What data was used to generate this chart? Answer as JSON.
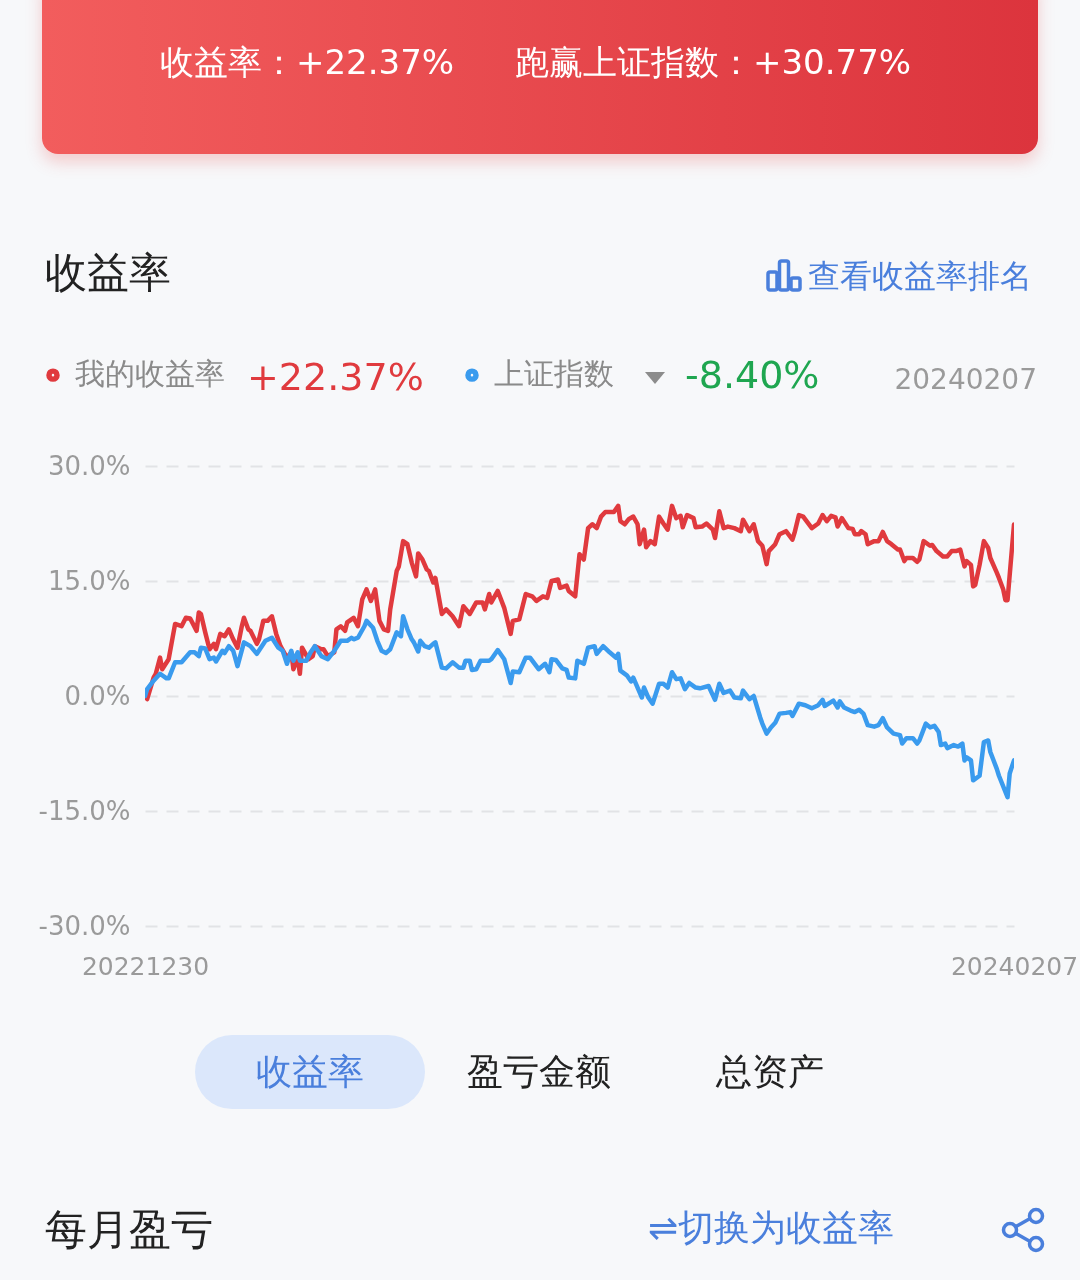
{
  "chart_data": {
    "type": "line",
    "title": "收益率",
    "series": [
      {
        "name": "我的收益率",
        "color": "#e03a3e",
        "x": [
          "2022-12-30",
          "2022-12-31",
          "2023-01-03",
          "2023-01-04",
          "2023-01-06",
          "2023-01-07",
          "2023-01-10",
          "2023-01-13",
          "2023-01-16",
          "2023-01-18",
          "2023-01-20",
          "2023-01-23",
          "2023-01-24",
          "2023-01-25",
          "2023-01-27",
          "2023-01-29",
          "2023-01-31",
          "2023-02-01",
          "2023-02-03",
          "2023-02-05",
          "2023-02-07",
          "2023-02-09",
          "2023-02-11",
          "2023-02-13",
          "2023-02-14",
          "2023-02-16",
          "2023-02-17",
          "2023-02-20",
          "2023-02-21",
          "2023-02-23",
          "2023-02-25",
          "2023-02-27",
          "2023-03-01",
          "2023-03-03",
          "2023-03-06",
          "2023-03-08",
          "2023-03-09",
          "2023-03-11",
          "2023-03-12",
          "2023-03-13",
          "2023-03-16",
          "2023-03-18",
          "2023-03-19",
          "2023-03-22",
          "2023-03-23",
          "2023-03-25",
          "2023-03-28",
          "2023-03-29",
          "2023-03-31",
          "2023-04-02",
          "2023-04-03",
          "2023-04-06",
          "2023-04-08",
          "2023-04-10",
          "2023-04-12",
          "2023-04-14",
          "2023-04-16",
          "2023-04-18",
          "2023-04-20",
          "2023-04-22",
          "2023-04-23",
          "2023-04-26",
          "2023-04-27",
          "2023-04-29",
          "2023-05-01",
          "2023-05-03",
          "2023-05-05",
          "2023-05-06",
          "2023-05-08",
          "2023-05-10",
          "2023-05-11",
          "2023-05-13",
          "2023-05-14",
          "2023-05-17",
          "2023-05-19",
          "2023-05-22",
          "2023-05-25",
          "2023-05-27",
          "2023-05-30",
          "2023-06-02",
          "2023-06-05",
          "2023-06-06",
          "2023-06-08",
          "2023-06-09",
          "2023-06-12",
          "2023-06-15",
          "2023-06-18",
          "2023-06-19",
          "2023-06-22",
          "2023-06-25",
          "2023-06-28",
          "2023-06-30",
          "2023-07-03",
          "2023-07-05",
          "2023-07-07",
          "2023-07-10",
          "2023-07-11",
          "2023-07-14",
          "2023-07-15",
          "2023-07-18",
          "2023-07-20",
          "2023-07-22",
          "2023-07-24",
          "2023-07-26",
          "2023-07-28",
          "2023-07-30",
          "2023-08-01",
          "2023-08-05",
          "2023-08-07",
          "2023-08-08",
          "2023-08-10",
          "2023-08-12",
          "2023-08-14",
          "2023-08-16",
          "2023-08-17",
          "2023-08-19",
          "2023-08-20",
          "2023-08-22",
          "2023-08-24",
          "2023-08-26",
          "2023-08-28",
          "2023-08-30",
          "2023-09-01",
          "2023-09-03",
          "2023-09-05",
          "2023-09-06",
          "2023-09-08",
          "2023-09-11",
          "2023-09-12",
          "2023-09-15",
          "2023-09-17",
          "2023-09-20",
          "2023-09-21",
          "2023-09-23",
          "2023-09-25",
          "2023-09-27",
          "2023-09-30",
          "2023-10-03",
          "2023-10-04",
          "2023-10-07",
          "2023-10-09",
          "2023-10-11",
          "2023-10-13",
          "2023-10-15",
          "2023-10-16",
          "2023-10-19",
          "2023-10-21",
          "2023-10-24",
          "2023-10-27",
          "2023-10-28",
          "2023-10-30",
          "2023-11-01",
          "2023-11-05",
          "2023-11-08",
          "2023-11-10",
          "2023-11-12",
          "2023-11-14",
          "2023-11-16",
          "2023-11-17",
          "2023-11-19",
          "2023-11-22",
          "2023-11-24",
          "2023-11-25",
          "2023-11-27",
          "2023-11-28",
          "2023-11-30",
          "2023-12-01",
          "2023-12-04",
          "2023-12-06",
          "2023-12-08",
          "2023-12-10",
          "2023-12-12",
          "2023-12-15",
          "2023-12-16",
          "2023-12-18",
          "2023-12-19",
          "2023-12-22",
          "2023-12-24",
          "2023-12-25",
          "2023-12-27",
          "2023-12-30",
          "2023-12-31",
          "2024-01-02",
          "2024-01-05",
          "2024-01-07",
          "2024-01-09",
          "2024-01-11",
          "2024-01-13",
          "2024-01-15",
          "2024-01-16",
          "2024-01-18",
          "2024-01-19",
          "2024-01-20",
          "2024-01-22",
          "2024-01-24",
          "2024-01-26",
          "2024-01-27",
          "2024-01-30",
          "2024-01-31",
          "2024-02-02",
          "2024-02-03",
          "2024-02-04",
          "2024-02-07"
        ],
        "values": [
          0,
          -0.4,
          2.4,
          2.9,
          5.0,
          3.5,
          4.8,
          9.4,
          9.1,
          10.2,
          10.1,
          8.5,
          10.9,
          10.7,
          8.3,
          6.1,
          6.8,
          6.1,
          8.1,
          7.8,
          8.7,
          7.4,
          6.3,
          9.1,
          10.2,
          8.7,
          8.5,
          6.8,
          7.4,
          9.8,
          9.8,
          10.4,
          8.1,
          6.5,
          5.0,
          5.7,
          3.5,
          5.0,
          2.9,
          6.3,
          4.8,
          5.2,
          6.5,
          6.1,
          6.1,
          5.2,
          5.7,
          8.7,
          9.1,
          8.5,
          9.6,
          10.2,
          9.1,
          12.6,
          13.9,
          12.4,
          13.9,
          9.8,
          8.7,
          8.5,
          11.3,
          16.3,
          16.9,
          20.2,
          19.8,
          17.4,
          15.6,
          18.6,
          17.8,
          16.5,
          16.3,
          14.8,
          15.4,
          10.7,
          11.3,
          10.4,
          9.1,
          11.7,
          10.7,
          12.2,
          12.2,
          11.3,
          13.3,
          12.2,
          13.7,
          11.5,
          8.1,
          9.8,
          10.0,
          13.3,
          13.0,
          12.4,
          13.0,
          12.8,
          15.0,
          15.2,
          14.1,
          14.4,
          13.7,
          13.0,
          18.5,
          17.8,
          21.9,
          22.4,
          21.9,
          23.4,
          24.0,
          24.0,
          24.8,
          22.8,
          22.4,
          23.1,
          23.4,
          22.4,
          19.8,
          21.7,
          19.4,
          20.2,
          19.8,
          23.4,
          22.5,
          21.7,
          24.8,
          23.2,
          23.5,
          22.0,
          23.6,
          23.2,
          22.0,
          22.1,
          22.5,
          21.7,
          20.6,
          24.1,
          21.9,
          22.1,
          21.9,
          21.5,
          23.0,
          21.5,
          22.4,
          20.2,
          19.6,
          17.2,
          18.9,
          19.8,
          21.1,
          21.5,
          20.4,
          21.3,
          23.6,
          23.4,
          21.9,
          22.5,
          23.6,
          22.8,
          23.5,
          23.3,
          22.1,
          23.2,
          21.9,
          21.8,
          21.1,
          21.1,
          21.5,
          21.1,
          19.8,
          20.2,
          20.2,
          21.4,
          20.2,
          19.8,
          19.1,
          19.1,
          17.6,
          18.0,
          18.0,
          17.5,
          17.8,
          20.2,
          19.6,
          19.7,
          18.9,
          18.2,
          18.2,
          18.9,
          18.9,
          19.1,
          16.9,
          17.6,
          17.1,
          14.3,
          14.5,
          17.1,
          20.2,
          19.3,
          18.0,
          16.1,
          15.4,
          13.9,
          12.5,
          12.5,
          22.37
        ]
      },
      {
        "name": "上证指数",
        "color": "#3a9bee",
        "x": [
          "2022-12-30",
          "2022-12-31",
          "2023-01-03",
          "2023-01-06",
          "2023-01-09",
          "2023-01-10",
          "2023-01-13",
          "2023-01-16",
          "2023-01-20",
          "2023-01-22",
          "2023-01-24",
          "2023-01-25",
          "2023-01-27",
          "2023-01-29",
          "2023-01-31",
          "2023-02-01",
          "2023-02-04",
          "2023-02-05",
          "2023-02-07",
          "2023-02-09",
          "2023-02-11",
          "2023-02-14",
          "2023-02-17",
          "2023-02-20",
          "2023-02-24",
          "2023-02-27",
          "2023-03-02",
          "2023-03-04",
          "2023-03-06",
          "2023-03-08",
          "2023-03-09",
          "2023-03-11",
          "2023-03-12",
          "2023-03-15",
          "2023-03-17",
          "2023-03-19",
          "2023-03-22",
          "2023-03-25",
          "2023-03-28",
          "2023-03-31",
          "2023-04-03",
          "2023-04-05",
          "2023-04-06",
          "2023-04-08",
          "2023-04-11",
          "2023-04-12",
          "2023-04-15",
          "2023-04-17",
          "2023-04-19",
          "2023-04-21",
          "2023-04-23",
          "2023-04-26",
          "2023-04-28",
          "2023-04-29",
          "2023-05-01",
          "2023-05-03",
          "2023-05-04",
          "2023-05-06",
          "2023-05-07",
          "2023-05-09",
          "2023-05-11",
          "2023-05-13",
          "2023-05-14",
          "2023-05-17",
          "2023-05-19",
          "2023-05-22",
          "2023-05-25",
          "2023-05-27",
          "2023-05-28",
          "2023-05-30",
          "2023-05-31",
          "2023-06-02",
          "2023-06-04",
          "2023-06-08",
          "2023-06-09",
          "2023-06-12",
          "2023-06-15",
          "2023-06-18",
          "2023-06-19",
          "2023-06-22",
          "2023-06-25",
          "2023-06-27",
          "2023-07-01",
          "2023-07-04",
          "2023-07-06",
          "2023-07-07",
          "2023-07-09",
          "2023-07-12",
          "2023-07-14",
          "2023-07-15",
          "2023-07-18",
          "2023-07-19",
          "2023-07-22",
          "2023-07-24",
          "2023-07-27",
          "2023-07-28",
          "2023-07-31",
          "2023-08-03",
          "2023-08-06",
          "2023-08-07",
          "2023-08-08",
          "2023-08-11",
          "2023-08-13",
          "2023-08-14",
          "2023-08-18",
          "2023-08-19",
          "2023-08-21",
          "2023-08-23",
          "2023-08-26",
          "2023-08-28",
          "2023-08-30",
          "2023-09-01",
          "2023-09-03",
          "2023-09-05",
          "2023-09-07",
          "2023-09-09",
          "2023-09-12",
          "2023-09-14",
          "2023-09-18",
          "2023-09-21",
          "2023-09-23",
          "2023-09-25",
          "2023-09-28",
          "2023-09-30",
          "2023-10-03",
          "2023-10-04",
          "2023-10-07",
          "2023-10-09",
          "2023-10-12",
          "2023-10-13",
          "2023-10-15",
          "2023-10-17",
          "2023-10-19",
          "2023-10-21",
          "2023-10-24",
          "2023-10-26",
          "2023-10-27",
          "2023-10-30",
          "2023-11-02",
          "2023-11-05",
          "2023-11-08",
          "2023-11-10",
          "2023-11-11",
          "2023-11-15",
          "2023-11-17",
          "2023-11-18",
          "2023-11-20",
          "2023-11-23",
          "2023-11-25",
          "2023-11-27",
          "2023-11-29",
          "2023-12-01",
          "2023-12-04",
          "2023-12-06",
          "2023-12-08",
          "2023-12-10",
          "2023-12-13",
          "2023-12-16",
          "2023-12-17",
          "2023-12-19",
          "2023-12-22",
          "2023-12-24",
          "2023-12-25",
          "2023-12-28",
          "2023-12-30",
          "2024-01-01",
          "2024-01-03",
          "2024-01-04",
          "2024-01-06",
          "2024-01-07",
          "2024-01-10",
          "2024-01-12",
          "2024-01-14",
          "2024-01-15",
          "2024-01-16",
          "2024-01-18",
          "2024-01-19",
          "2024-01-22",
          "2024-01-24",
          "2024-01-26",
          "2024-01-27",
          "2024-01-30",
          "2024-01-31",
          "2024-02-04",
          "2024-02-05",
          "2024-02-07"
        ],
        "values": [
          0,
          0.9,
          2.0,
          2.9,
          2.3,
          2.3,
          4.4,
          4.4,
          5.7,
          5.7,
          5.2,
          6.3,
          6.2,
          4.8,
          5.0,
          4.5,
          5.9,
          5.6,
          6.5,
          5.9,
          3.9,
          7.0,
          6.5,
          5.5,
          7.2,
          7.6,
          6.3,
          5.9,
          4.2,
          5.9,
          4.6,
          5.7,
          4.6,
          4.6,
          5.7,
          6.5,
          5.2,
          4.8,
          5.9,
          7.2,
          7.2,
          7.6,
          7.4,
          7.6,
          9.1,
          9.8,
          8.9,
          7.2,
          5.9,
          5.6,
          6.1,
          8.3,
          7.8,
          10.4,
          8.7,
          7.4,
          7.0,
          5.8,
          7.2,
          6.5,
          6.3,
          6.8,
          7.0,
          3.7,
          3.6,
          4.4,
          3.7,
          3.7,
          4.6,
          4.6,
          3.4,
          3.5,
          4.6,
          4.6,
          4.8,
          6.0,
          4.8,
          1.7,
          3.2,
          3.1,
          5.0,
          5.0,
          3.5,
          4.2,
          3.1,
          4.8,
          4.7,
          3.6,
          3.4,
          2.4,
          2.3,
          4.6,
          4.2,
          6.3,
          6.5,
          5.5,
          6.5,
          5.7,
          5.0,
          5.5,
          3.3,
          2.7,
          1.9,
          2.4,
          -0.2,
          1.1,
          -0.2,
          -1.0,
          1.6,
          1.6,
          1.1,
          3.1,
          2.2,
          2.3,
          0.9,
          1.7,
          1.1,
          1.0,
          1.3,
          -0.5,
          1.6,
          0.4,
          0.7,
          -0.2,
          -0.3,
          0.7,
          -0.4,
          0,
          -2.8,
          -3.6,
          -4.9,
          -4.1,
          -3.5,
          -2.3,
          -2.2,
          -2.1,
          -2.6,
          -1.0,
          -1.2,
          -1.6,
          -1.2,
          -0.5,
          -1.3,
          -0.6,
          -1.5,
          -0.7,
          -1.5,
          -1.9,
          -2.1,
          -1.8,
          -2.3,
          -3.8,
          -4.0,
          -3.8,
          -2.9,
          -4.1,
          -4.9,
          -5.1,
          -6.2,
          -5.5,
          -5.5,
          -6.2,
          -5.8,
          -3.6,
          -4.1,
          -3.9,
          -4.7,
          -6.4,
          -6.2,
          -6.8,
          -6.4,
          -6.6,
          -6.2,
          -8.4,
          -8.0,
          -8.4,
          -11.0,
          -10.4,
          -6.0,
          -5.8,
          -7.3,
          -9.5,
          -10.4,
          -13.2,
          -10.1,
          -8.4
        ]
      }
    ],
    "xlim": [
      "2022-12-30",
      "2024-02-07"
    ],
    "xticks": [
      {
        "value": "2022-12-30",
        "label": "20221230"
      },
      {
        "value": "2024-02-07",
        "label": "20240207"
      }
    ],
    "ylim": [
      -30,
      30
    ],
    "yticks": [
      {
        "value": -30,
        "label": "-30.0%"
      },
      {
        "value": -15,
        "label": "-15.0%"
      },
      {
        "value": 0,
        "label": "0.0%"
      },
      {
        "value": 15,
        "label": "15.0%"
      },
      {
        "value": 30,
        "label": "30.0%"
      }
    ],
    "grid": "y",
    "legend": "top left",
    "line_style": "solid",
    "annotations": [
      "收益率：+22.37%",
      "跑赢上证指数：+30.77%",
      "查看收益率排名",
      "+22.37%",
      "-8.40%",
      "20240207",
      "收益率",
      "盈亏金额",
      "总资产",
      "每月盈亏",
      "⇌切换为收益率"
    ]
  }
}
